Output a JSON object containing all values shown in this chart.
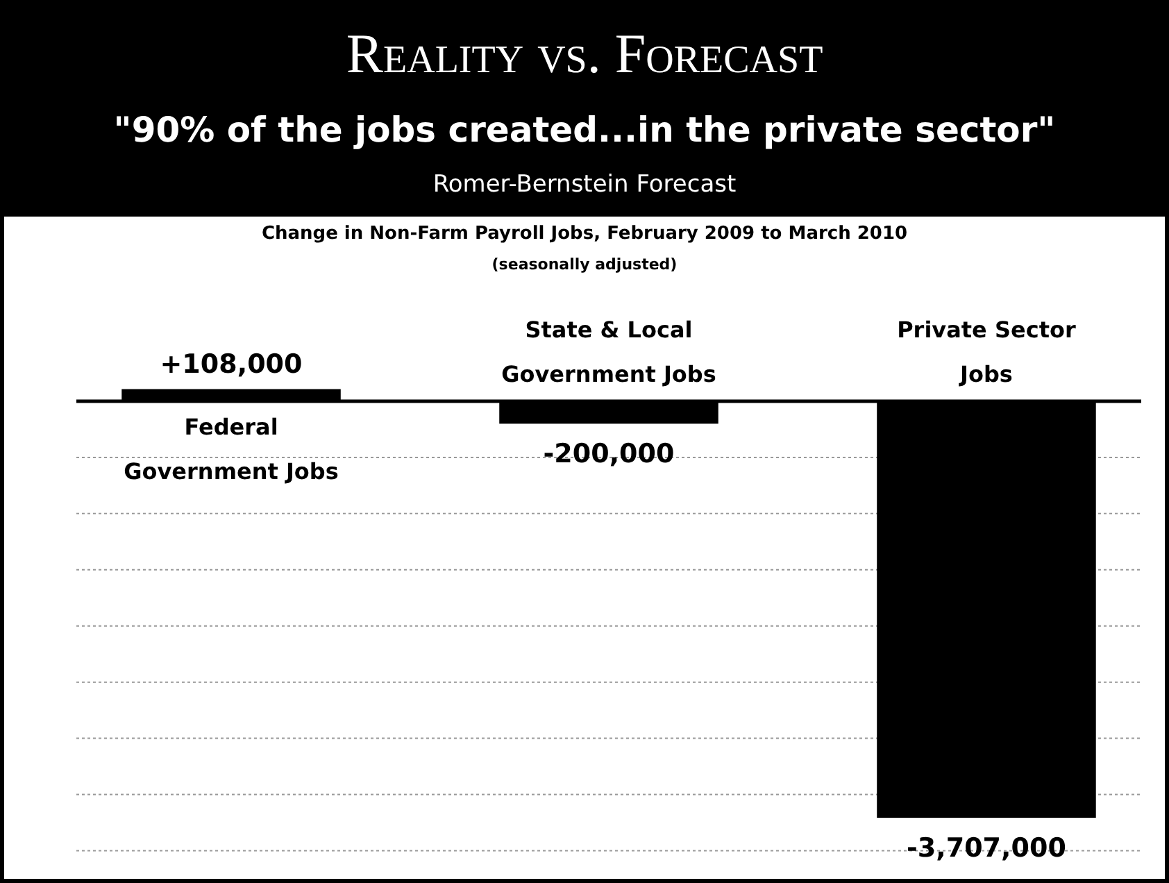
{
  "chart_data": {
    "type": "bar",
    "title": "Reality vs. Forecast",
    "subtitle": "\"90% of the jobs created...in the private sector\"",
    "annotations": [
      "Romer-Bernstein Forecast",
      "Change in Non-Farm Payroll Jobs, February 2009 to March 2010",
      "(seasonally adjusted)"
    ],
    "categories": [
      "Federal Government Jobs",
      "State & Local Government Jobs",
      "Private Sector Jobs"
    ],
    "values": [
      108000,
      -200000,
      -3707000
    ],
    "value_labels": [
      "+108,000",
      "-200,000",
      "-3,707,000"
    ],
    "color": "#000000",
    "yticks": [
      {
        "value": -500000,
        "label": null
      },
      {
        "value": -1000000,
        "label": null
      },
      {
        "value": -1500000,
        "label": null
      },
      {
        "value": -2000000,
        "label": null
      },
      {
        "value": -2500000,
        "label": null
      },
      {
        "value": -3000000,
        "label": null
      },
      {
        "value": -3500000,
        "label": null
      },
      {
        "value": -4000000,
        "label": null
      }
    ],
    "grid": "y"
  }
}
